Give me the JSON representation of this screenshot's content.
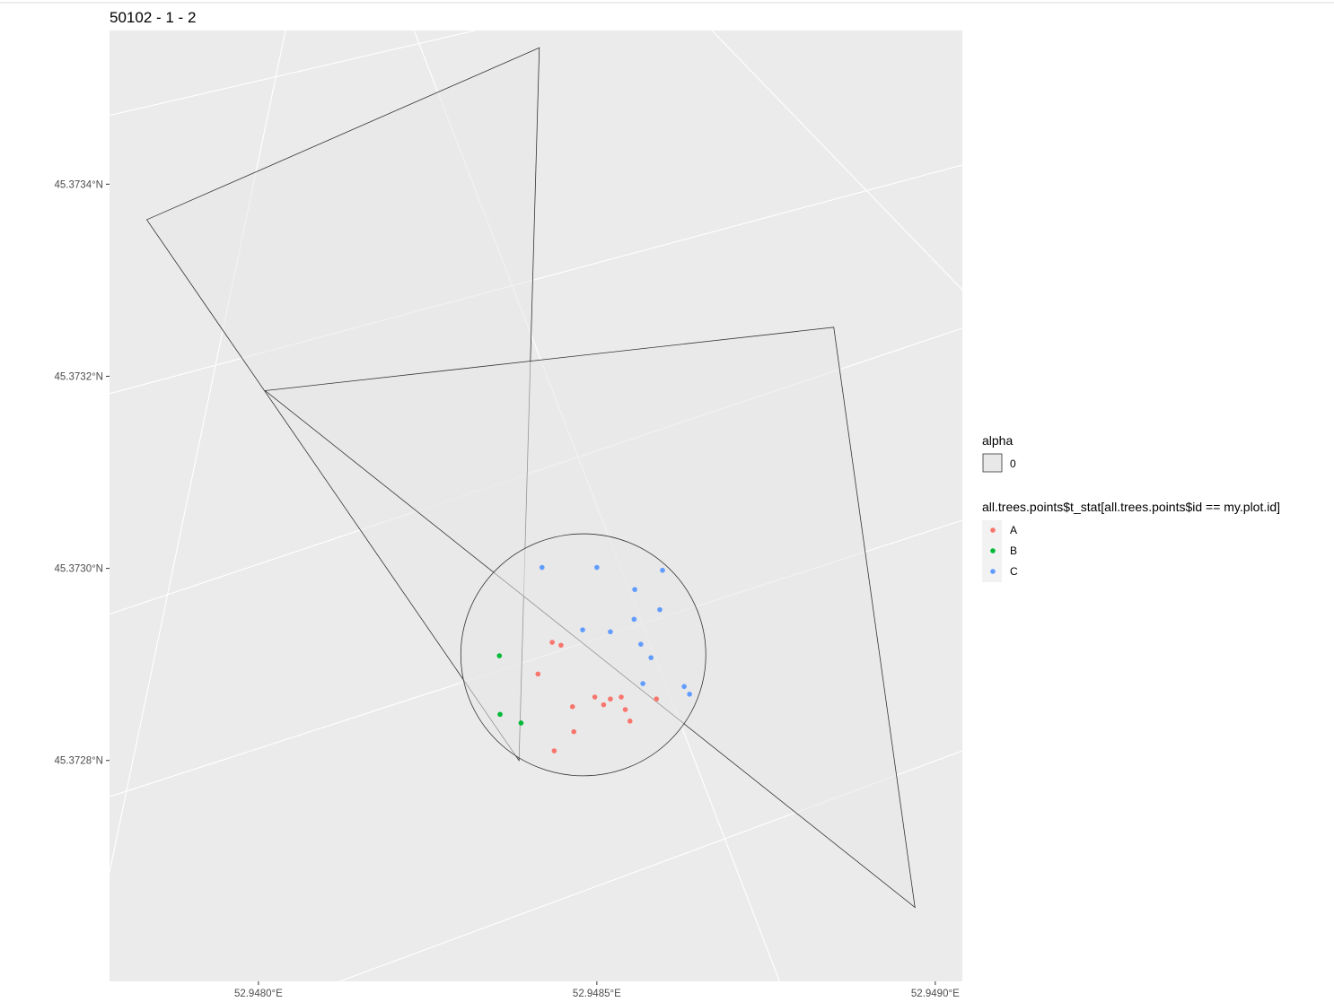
{
  "chart_data": {
    "type": "scatter",
    "title": "50102 - 1 - 2",
    "xlabel": "",
    "ylabel": "",
    "x_ticks": [
      {
        "value": 52.948,
        "label": "52.9480°E"
      },
      {
        "value": 52.9485,
        "label": "52.9485°E"
      },
      {
        "value": 52.949,
        "label": "52.9490°E"
      }
    ],
    "y_ticks": [
      {
        "value": 45.3734,
        "label": "45.3734°N"
      },
      {
        "value": 45.3732,
        "label": "45.3732°N"
      },
      {
        "value": 45.373,
        "label": "45.3730°N"
      },
      {
        "value": 45.3728,
        "label": "45.3728°N"
      }
    ],
    "xlim": [
      52.94778,
      52.94904
    ],
    "ylim": [
      45.37257,
      45.37356
    ],
    "grid": true,
    "background": "#ebebeb",
    "legend_position": "right",
    "legends": [
      {
        "title": "alpha",
        "entries": [
          {
            "label": "0",
            "fill": "#e8e8e8"
          }
        ]
      },
      {
        "title": "all.trees.points$t_stat[all.trees.points$id == my.plot.id]",
        "entries": [
          {
            "label": "A",
            "color": "#F8766D"
          },
          {
            "label": "B",
            "color": "#00BA38"
          },
          {
            "label": "C",
            "color": "#619CFF"
          }
        ]
      }
    ],
    "polygons": [
      {
        "name": "triangle-north",
        "points": [
          [
            52.947835,
            45.373363
          ],
          [
            52.948415,
            45.373542
          ],
          [
            52.948385,
            45.3728
          ]
        ]
      },
      {
        "name": "triangle-east",
        "points": [
          [
            52.94801,
            45.373185
          ],
          [
            52.94885,
            45.373251
          ],
          [
            52.94897,
            45.372647
          ]
        ]
      },
      {
        "name": "plot-circle",
        "center": [
          52.94848,
          45.37291
        ],
        "radius_lon": 0.000181,
        "radius_lat": 0.000126
      }
    ],
    "series": [
      {
        "name": "A",
        "color": "#F8766D",
        "x": [
          52.948434,
          52.948447,
          52.948413,
          52.948497,
          52.948464,
          52.94851,
          52.948536,
          52.948542,
          52.948588,
          52.94852,
          52.948466,
          52.948437,
          52.948549
        ],
        "y": [
          45.372923,
          45.37292,
          45.37289,
          45.372866,
          45.372856,
          45.372858,
          45.372866,
          45.372853,
          45.372864,
          45.372864,
          45.37283,
          45.37281,
          45.372841
        ]
      },
      {
        "name": "B",
        "color": "#00BA38",
        "x": [
          52.948356,
          52.948357,
          52.948388
        ],
        "y": [
          45.372909,
          45.372848,
          45.372839
        ]
      },
      {
        "name": "C",
        "color": "#619CFF",
        "x": [
          52.948419,
          52.9485,
          52.948597,
          52.948556,
          52.948593,
          52.948555,
          52.948479,
          52.94852,
          52.948565,
          52.94858,
          52.948568,
          52.948629,
          52.948637
        ],
        "y": [
          45.373001,
          45.373001,
          45.372998,
          45.372978,
          45.372957,
          45.372947,
          45.372936,
          45.372934,
          45.372921,
          45.372907,
          45.37288,
          45.372877,
          45.372869
        ]
      }
    ]
  }
}
